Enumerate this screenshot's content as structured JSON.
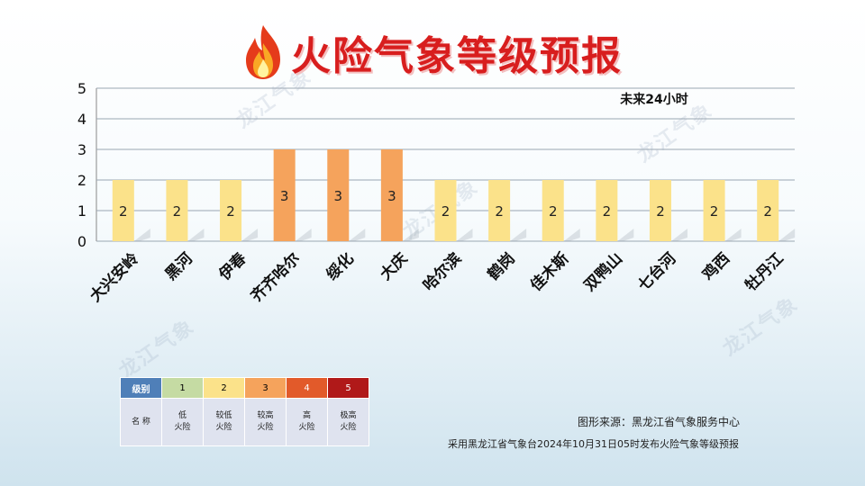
{
  "header": {
    "title": "火险气象等级预报"
  },
  "chart_data": {
    "type": "bar",
    "title": "火险气象等级预报",
    "annotation": "未来24小时",
    "categories": [
      "大兴安岭",
      "黑河",
      "伊春",
      "齐齐哈尔",
      "绥化",
      "大庆",
      "哈尔滨",
      "鹤岗",
      "佳木斯",
      "双鸭山",
      "七台河",
      "鸡西",
      "牡丹江"
    ],
    "values": [
      2,
      2,
      2,
      3,
      3,
      3,
      2,
      2,
      2,
      2,
      2,
      2,
      2
    ],
    "ylim": [
      0,
      5
    ],
    "yticks": [
      0,
      1,
      2,
      3,
      4,
      5
    ],
    "grid": true,
    "level_colors": {
      "2": "#fbe28a",
      "3": "#f5a35c"
    }
  },
  "legend": {
    "header_label": "级别",
    "levels": [
      "1",
      "2",
      "3",
      "4",
      "5"
    ],
    "name_label": "名 称",
    "names": [
      [
        "低",
        "火险"
      ],
      [
        "较低",
        "火险"
      ],
      [
        "较高",
        "火险"
      ],
      [
        "高",
        "火险"
      ],
      [
        "极高",
        "火险"
      ]
    ]
  },
  "footer": {
    "source": "图形来源：黑龙江省气象服务中心",
    "note": "采用黑龙江省气象台2024年10月31日05时发布火险气象等级预报"
  },
  "watermark": "龙江气象"
}
